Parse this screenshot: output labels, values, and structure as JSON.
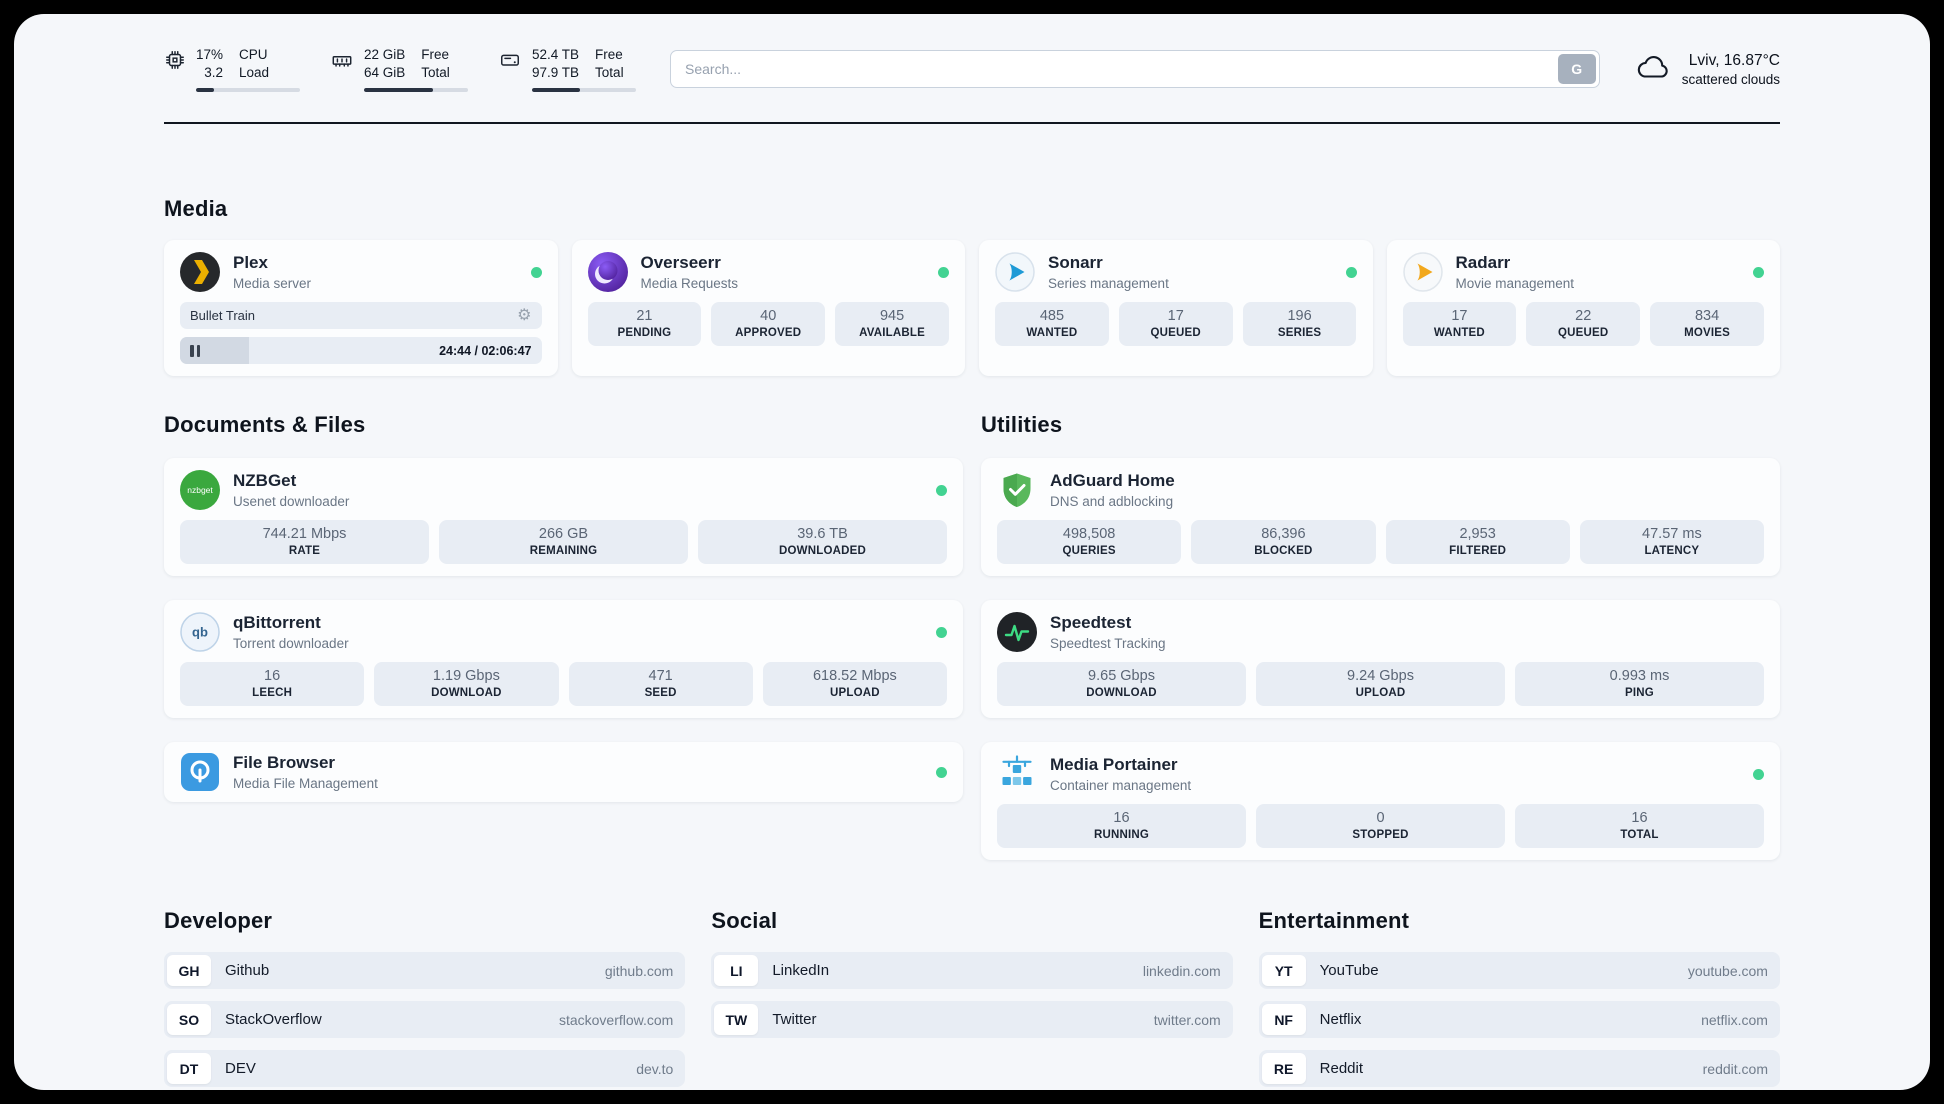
{
  "colors": {
    "status_green": "#42d392"
  },
  "topbar": {
    "cpu": {
      "value1": "17%",
      "value2": "3.2",
      "label1": "CPU",
      "label2": "Load",
      "bar_percent": 17
    },
    "ram": {
      "value1": "22 GiB",
      "value2": "64 GiB",
      "label1": "Free",
      "label2": "Total",
      "bar_percent": 66
    },
    "disk": {
      "value1": "52.4 TB",
      "value2": "97.9 TB",
      "label1": "Free",
      "label2": "Total",
      "bar_percent": 46
    },
    "search": {
      "placeholder": "Search...",
      "button_label": "G"
    },
    "weather": {
      "location": "Lviv, 16.87°C",
      "condition": "scattered clouds"
    }
  },
  "sections": {
    "media": "Media",
    "documents": "Documents & Files",
    "utilities": "Utilities",
    "developer": "Developer",
    "social": "Social",
    "entertainment": "Entertainment"
  },
  "icons": {
    "nzbget_label": "nzbget",
    "qbittorrent_label": "qb"
  },
  "apps": {
    "plex": {
      "name": "Plex",
      "subtitle": "Media server",
      "now_playing": {
        "title": "Bullet Train",
        "time": "24:44 / 02:06:47",
        "progress_percent": 19
      }
    },
    "overseerr": {
      "name": "Overseerr",
      "subtitle": "Media Requests",
      "stats": [
        {
          "value": "21",
          "label": "PENDING"
        },
        {
          "value": "40",
          "label": "APPROVED"
        },
        {
          "value": "945",
          "label": "AVAILABLE"
        }
      ]
    },
    "sonarr": {
      "name": "Sonarr",
      "subtitle": "Series management",
      "stats": [
        {
          "value": "485",
          "label": "WANTED"
        },
        {
          "value": "17",
          "label": "QUEUED"
        },
        {
          "value": "196",
          "label": "SERIES"
        }
      ]
    },
    "radarr": {
      "name": "Radarr",
      "subtitle": "Movie management",
      "stats": [
        {
          "value": "17",
          "label": "WANTED"
        },
        {
          "value": "22",
          "label": "QUEUED"
        },
        {
          "value": "834",
          "label": "MOVIES"
        }
      ]
    },
    "nzbget": {
      "name": "NZBGet",
      "subtitle": "Usenet downloader",
      "stats": [
        {
          "value": "744.21 Mbps",
          "label": "RATE"
        },
        {
          "value": "266 GB",
          "label": "REMAINING"
        },
        {
          "value": "39.6 TB",
          "label": "DOWNLOADED"
        }
      ]
    },
    "qbittorrent": {
      "name": "qBittorrent",
      "subtitle": "Torrent downloader",
      "stats": [
        {
          "value": "16",
          "label": "LEECH"
        },
        {
          "value": "1.19 Gbps",
          "label": "DOWNLOAD"
        },
        {
          "value": "471",
          "label": "SEED"
        },
        {
          "value": "618.52 Mbps",
          "label": "UPLOAD"
        }
      ]
    },
    "filebrowser": {
      "name": "File Browser",
      "subtitle": "Media File Management"
    },
    "adguard": {
      "name": "AdGuard Home",
      "subtitle": "DNS and adblocking",
      "stats": [
        {
          "value": "498,508",
          "label": "QUERIES"
        },
        {
          "value": "86,396",
          "label": "BLOCKED"
        },
        {
          "value": "2,953",
          "label": "FILTERED"
        },
        {
          "value": "47.57 ms",
          "label": "LATENCY"
        }
      ]
    },
    "speedtest": {
      "name": "Speedtest",
      "subtitle": "Speedtest Tracking",
      "stats": [
        {
          "value": "9.65 Gbps",
          "label": "DOWNLOAD"
        },
        {
          "value": "9.24 Gbps",
          "label": "UPLOAD"
        },
        {
          "value": "0.993 ms",
          "label": "PING"
        }
      ]
    },
    "portainer": {
      "name": "Media Portainer",
      "subtitle": "Container management",
      "stats": [
        {
          "value": "16",
          "label": "RUNNING"
        },
        {
          "value": "0",
          "label": "STOPPED"
        },
        {
          "value": "16",
          "label": "TOTAL"
        }
      ]
    }
  },
  "bookmarks": {
    "developer": [
      {
        "badge": "GH",
        "name": "Github",
        "domain": "github.com"
      },
      {
        "badge": "SO",
        "name": "StackOverflow",
        "domain": "stackoverflow.com"
      },
      {
        "badge": "DT",
        "name": "DEV",
        "domain": "dev.to"
      }
    ],
    "social": [
      {
        "badge": "LI",
        "name": "LinkedIn",
        "domain": "linkedin.com"
      },
      {
        "badge": "TW",
        "name": "Twitter",
        "domain": "twitter.com"
      }
    ],
    "entertainment": [
      {
        "badge": "YT",
        "name": "YouTube",
        "domain": "youtube.com"
      },
      {
        "badge": "NF",
        "name": "Netflix",
        "domain": "netflix.com"
      },
      {
        "badge": "RE",
        "name": "Reddit",
        "domain": "reddit.com"
      }
    ]
  }
}
